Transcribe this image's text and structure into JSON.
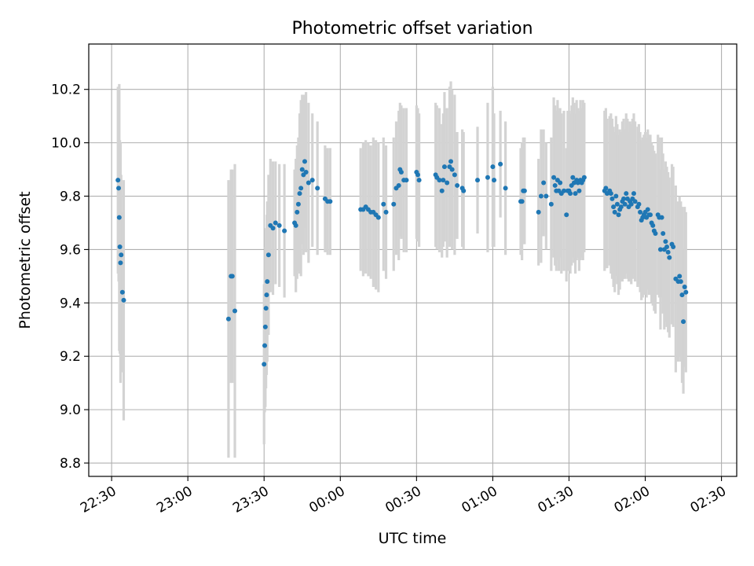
{
  "chart_data": {
    "type": "scatter",
    "title": "Photometric offset variation",
    "xlabel": "UTC time",
    "ylabel": "Photometric offset",
    "x_tick_labels": [
      "22:30",
      "23:00",
      "23:30",
      "00:00",
      "00:30",
      "01:00",
      "01:30",
      "02:00",
      "02:30"
    ],
    "y_tick_labels": [
      "8.8",
      "9.0",
      "9.2",
      "9.4",
      "9.6",
      "9.8",
      "10.0",
      "10.2"
    ],
    "xlim": [
      "22:21",
      "02:36"
    ],
    "ylim": [
      8.75,
      10.37
    ],
    "grid": true,
    "colors": {
      "points": "#1f77b4",
      "error_bars": "#d3d3d3",
      "grid": "#b0b0b0"
    },
    "points": [
      {
        "t": "22:32:30",
        "y": 9.86,
        "err": 0.35
      },
      {
        "t": "22:32:45",
        "y": 9.83,
        "err": 0.35
      },
      {
        "t": "22:33:00",
        "y": 9.72,
        "err": 0.5
      },
      {
        "t": "22:33:15",
        "y": 9.61,
        "err": 0.4
      },
      {
        "t": "22:33:30",
        "y": 9.55,
        "err": 0.45
      },
      {
        "t": "22:33:45",
        "y": 9.58,
        "err": 0.3
      },
      {
        "t": "22:34:15",
        "y": 9.44,
        "err": 0.3
      },
      {
        "t": "22:34:45",
        "y": 9.41,
        "err": 0.45
      },
      {
        "t": "23:16:00",
        "y": 9.34,
        "err": 0.52
      },
      {
        "t": "23:17:00",
        "y": 9.5,
        "err": 0.4
      },
      {
        "t": "23:17:30",
        "y": 9.5,
        "err": 0.4
      },
      {
        "t": "23:18:30",
        "y": 9.37,
        "err": 0.55
      },
      {
        "t": "23:30:00",
        "y": 9.17,
        "err": 0.3
      },
      {
        "t": "23:30:15",
        "y": 9.24,
        "err": 0.25
      },
      {
        "t": "23:30:30",
        "y": 9.31,
        "err": 0.3
      },
      {
        "t": "23:30:45",
        "y": 9.38,
        "err": 0.3
      },
      {
        "t": "23:31:00",
        "y": 9.43,
        "err": 0.3
      },
      {
        "t": "23:31:15",
        "y": 9.48,
        "err": 0.3
      },
      {
        "t": "23:31:45",
        "y": 9.58,
        "err": 0.3
      },
      {
        "t": "23:32:30",
        "y": 9.69,
        "err": 0.25
      },
      {
        "t": "23:33:30",
        "y": 9.68,
        "err": 0.25
      },
      {
        "t": "23:34:30",
        "y": 9.7,
        "err": 0.23
      },
      {
        "t": "23:36:00",
        "y": 9.69,
        "err": 0.23
      },
      {
        "t": "23:38:00",
        "y": 9.67,
        "err": 0.25
      },
      {
        "t": "23:42:00",
        "y": 9.7,
        "err": 0.2
      },
      {
        "t": "23:42:30",
        "y": 9.69,
        "err": 0.25
      },
      {
        "t": "23:43:00",
        "y": 9.74,
        "err": 0.25
      },
      {
        "t": "23:43:30",
        "y": 9.77,
        "err": 0.25
      },
      {
        "t": "23:44:00",
        "y": 9.81,
        "err": 0.3
      },
      {
        "t": "23:44:30",
        "y": 9.83,
        "err": 0.33
      },
      {
        "t": "23:45:00",
        "y": 9.9,
        "err": 0.28
      },
      {
        "t": "23:45:30",
        "y": 9.88,
        "err": 0.3
      },
      {
        "t": "23:46:00",
        "y": 9.93,
        "err": 0.25
      },
      {
        "t": "23:46:30",
        "y": 9.89,
        "err": 0.3
      },
      {
        "t": "23:47:30",
        "y": 9.85,
        "err": 0.3
      },
      {
        "t": "23:49:00",
        "y": 9.86,
        "err": 0.25
      },
      {
        "t": "23:51:00",
        "y": 9.83,
        "err": 0.25
      },
      {
        "t": "23:54:00",
        "y": 9.79,
        "err": 0.2
      },
      {
        "t": "23:55:00",
        "y": 9.78,
        "err": 0.2
      },
      {
        "t": "23:56:00",
        "y": 9.78,
        "err": 0.2
      },
      {
        "t": "00:08:00",
        "y": 9.75,
        "err": 0.23
      },
      {
        "t": "00:09:00",
        "y": 9.75,
        "err": 0.25
      },
      {
        "t": "00:10:00",
        "y": 9.76,
        "err": 0.25
      },
      {
        "t": "00:11:00",
        "y": 9.75,
        "err": 0.25
      },
      {
        "t": "00:12:00",
        "y": 9.74,
        "err": 0.25
      },
      {
        "t": "00:13:00",
        "y": 9.74,
        "err": 0.28
      },
      {
        "t": "00:14:00",
        "y": 9.73,
        "err": 0.28
      },
      {
        "t": "00:15:00",
        "y": 9.72,
        "err": 0.28
      },
      {
        "t": "00:17:00",
        "y": 9.77,
        "err": 0.25
      },
      {
        "t": "00:18:00",
        "y": 9.74,
        "err": 0.25
      },
      {
        "t": "00:21:00",
        "y": 9.77,
        "err": 0.25
      },
      {
        "t": "00:22:00",
        "y": 9.83,
        "err": 0.25
      },
      {
        "t": "00:23:00",
        "y": 9.84,
        "err": 0.28
      },
      {
        "t": "00:23:30",
        "y": 9.9,
        "err": 0.25
      },
      {
        "t": "00:24:00",
        "y": 9.89,
        "err": 0.25
      },
      {
        "t": "00:25:00",
        "y": 9.86,
        "err": 0.27
      },
      {
        "t": "00:26:00",
        "y": 9.86,
        "err": 0.27
      },
      {
        "t": "00:30:00",
        "y": 9.89,
        "err": 0.25
      },
      {
        "t": "00:30:30",
        "y": 9.88,
        "err": 0.25
      },
      {
        "t": "00:31:00",
        "y": 9.86,
        "err": 0.25
      },
      {
        "t": "00:37:30",
        "y": 9.88,
        "err": 0.27
      },
      {
        "t": "00:38:00",
        "y": 9.87,
        "err": 0.27
      },
      {
        "t": "00:39:00",
        "y": 9.86,
        "err": 0.27
      },
      {
        "t": "00:40:00",
        "y": 9.82,
        "err": 0.25
      },
      {
        "t": "00:40:30",
        "y": 9.86,
        "err": 0.25
      },
      {
        "t": "00:41:00",
        "y": 9.91,
        "err": 0.28
      },
      {
        "t": "00:42:00",
        "y": 9.85,
        "err": 0.28
      },
      {
        "t": "00:43:00",
        "y": 9.91,
        "err": 0.3
      },
      {
        "t": "00:43:30",
        "y": 9.93,
        "err": 0.3
      },
      {
        "t": "00:44:00",
        "y": 9.9,
        "err": 0.3
      },
      {
        "t": "00:45:00",
        "y": 9.88,
        "err": 0.3
      },
      {
        "t": "00:46:00",
        "y": 9.84,
        "err": 0.2
      },
      {
        "t": "00:48:00",
        "y": 9.83,
        "err": 0.22
      },
      {
        "t": "00:48:30",
        "y": 9.82,
        "err": 0.22
      },
      {
        "t": "00:54:00",
        "y": 9.86,
        "err": 0.2
      },
      {
        "t": "00:58:00",
        "y": 9.87,
        "err": 0.28
      },
      {
        "t": "01:00:00",
        "y": 9.91,
        "err": 0.3
      },
      {
        "t": "01:00:30",
        "y": 9.86,
        "err": 0.25
      },
      {
        "t": "01:03:00",
        "y": 9.92,
        "err": 0.2
      },
      {
        "t": "01:05:00",
        "y": 9.83,
        "err": 0.25
      },
      {
        "t": "01:11:00",
        "y": 9.78,
        "err": 0.2
      },
      {
        "t": "01:11:30",
        "y": 9.78,
        "err": 0.22
      },
      {
        "t": "01:12:00",
        "y": 9.82,
        "err": 0.2
      },
      {
        "t": "01:12:30",
        "y": 9.82,
        "err": 0.2
      },
      {
        "t": "01:18:00",
        "y": 9.74,
        "err": 0.2
      },
      {
        "t": "01:19:00",
        "y": 9.8,
        "err": 0.25
      },
      {
        "t": "01:20:00",
        "y": 9.85,
        "err": 0.2
      },
      {
        "t": "01:21:00",
        "y": 9.8,
        "err": 0.2
      },
      {
        "t": "01:23:00",
        "y": 9.77,
        "err": 0.25
      },
      {
        "t": "01:24:00",
        "y": 9.87,
        "err": 0.3
      },
      {
        "t": "01:24:30",
        "y": 9.84,
        "err": 0.3
      },
      {
        "t": "01:25:00",
        "y": 9.82,
        "err": 0.3
      },
      {
        "t": "01:25:30",
        "y": 9.86,
        "err": 0.3
      },
      {
        "t": "01:26:00",
        "y": 9.82,
        "err": 0.3
      },
      {
        "t": "01:26:30",
        "y": 9.85,
        "err": 0.28
      },
      {
        "t": "01:27:00",
        "y": 9.81,
        "err": 0.3
      },
      {
        "t": "01:28:00",
        "y": 9.82,
        "err": 0.3
      },
      {
        "t": "01:29:00",
        "y": 9.73,
        "err": 0.25
      },
      {
        "t": "01:29:30",
        "y": 9.82,
        "err": 0.3
      },
      {
        "t": "01:30:00",
        "y": 9.82,
        "err": 0.3
      },
      {
        "t": "01:30:30",
        "y": 9.81,
        "err": 0.3
      },
      {
        "t": "01:31:00",
        "y": 9.84,
        "err": 0.3
      },
      {
        "t": "01:31:30",
        "y": 9.87,
        "err": 0.3
      },
      {
        "t": "01:32:00",
        "y": 9.85,
        "err": 0.3
      },
      {
        "t": "01:32:30",
        "y": 9.81,
        "err": 0.3
      },
      {
        "t": "01:33:00",
        "y": 9.86,
        "err": 0.3
      },
      {
        "t": "01:33:30",
        "y": 9.85,
        "err": 0.28
      },
      {
        "t": "01:34:00",
        "y": 9.82,
        "err": 0.3
      },
      {
        "t": "01:34:30",
        "y": 9.86,
        "err": 0.3
      },
      {
        "t": "01:35:00",
        "y": 9.85,
        "err": 0.28
      },
      {
        "t": "01:35:30",
        "y": 9.86,
        "err": 0.3
      },
      {
        "t": "01:36:00",
        "y": 9.87,
        "err": 0.28
      },
      {
        "t": "01:44:00",
        "y": 9.82,
        "err": 0.3
      },
      {
        "t": "01:44:30",
        "y": 9.83,
        "err": 0.3
      },
      {
        "t": "01:45:00",
        "y": 9.81,
        "err": 0.28
      },
      {
        "t": "01:46:00",
        "y": 9.82,
        "err": 0.28
      },
      {
        "t": "01:46:30",
        "y": 9.81,
        "err": 0.3
      },
      {
        "t": "01:47:00",
        "y": 9.79,
        "err": 0.3
      },
      {
        "t": "01:47:30",
        "y": 9.76,
        "err": 0.3
      },
      {
        "t": "01:48:00",
        "y": 9.74,
        "err": 0.3
      },
      {
        "t": "01:48:30",
        "y": 9.8,
        "err": 0.3
      },
      {
        "t": "01:49:00",
        "y": 9.77,
        "err": 0.3
      },
      {
        "t": "01:49:30",
        "y": 9.73,
        "err": 0.3
      },
      {
        "t": "01:50:00",
        "y": 9.75,
        "err": 0.3
      },
      {
        "t": "01:50:30",
        "y": 9.76,
        "err": 0.28
      },
      {
        "t": "01:51:00",
        "y": 9.78,
        "err": 0.3
      },
      {
        "t": "01:51:30",
        "y": 9.79,
        "err": 0.3
      },
      {
        "t": "01:52:00",
        "y": 9.77,
        "err": 0.28
      },
      {
        "t": "01:52:30",
        "y": 9.81,
        "err": 0.3
      },
      {
        "t": "01:53:00",
        "y": 9.79,
        "err": 0.3
      },
      {
        "t": "01:53:30",
        "y": 9.76,
        "err": 0.28
      },
      {
        "t": "01:54:00",
        "y": 9.78,
        "err": 0.3
      },
      {
        "t": "01:54:30",
        "y": 9.77,
        "err": 0.3
      },
      {
        "t": "01:55:00",
        "y": 9.79,
        "err": 0.3
      },
      {
        "t": "01:55:30",
        "y": 9.81,
        "err": 0.3
      },
      {
        "t": "01:56:00",
        "y": 9.78,
        "err": 0.3
      },
      {
        "t": "01:57:00",
        "y": 9.76,
        "err": 0.3
      },
      {
        "t": "01:57:30",
        "y": 9.77,
        "err": 0.3
      },
      {
        "t": "01:58:00",
        "y": 9.74,
        "err": 0.3
      },
      {
        "t": "01:58:30",
        "y": 9.71,
        "err": 0.3
      },
      {
        "t": "01:59:00",
        "y": 9.72,
        "err": 0.3
      },
      {
        "t": "01:59:30",
        "y": 9.73,
        "err": 0.3
      },
      {
        "t": "02:00:00",
        "y": 9.74,
        "err": 0.3
      },
      {
        "t": "02:00:30",
        "y": 9.72,
        "err": 0.3
      },
      {
        "t": "02:01:00",
        "y": 9.75,
        "err": 0.3
      },
      {
        "t": "02:01:30",
        "y": 9.73,
        "err": 0.3
      },
      {
        "t": "02:02:00",
        "y": 9.73,
        "err": 0.3
      },
      {
        "t": "02:02:30",
        "y": 9.7,
        "err": 0.3
      },
      {
        "t": "02:03:00",
        "y": 9.69,
        "err": 0.3
      },
      {
        "t": "02:03:30",
        "y": 9.67,
        "err": 0.3
      },
      {
        "t": "02:04:00",
        "y": 9.66,
        "err": 0.3
      },
      {
        "t": "02:05:00",
        "y": 9.73,
        "err": 0.3
      },
      {
        "t": "02:05:30",
        "y": 9.72,
        "err": 0.3
      },
      {
        "t": "02:06:00",
        "y": 9.6,
        "err": 0.3
      },
      {
        "t": "02:06:30",
        "y": 9.72,
        "err": 0.3
      },
      {
        "t": "02:07:00",
        "y": 9.66,
        "err": 0.3
      },
      {
        "t": "02:07:30",
        "y": 9.6,
        "err": 0.3
      },
      {
        "t": "02:08:00",
        "y": 9.63,
        "err": 0.3
      },
      {
        "t": "02:08:30",
        "y": 9.61,
        "err": 0.3
      },
      {
        "t": "02:09:00",
        "y": 9.59,
        "err": 0.3
      },
      {
        "t": "02:09:30",
        "y": 9.57,
        "err": 0.3
      },
      {
        "t": "02:10:30",
        "y": 9.62,
        "err": 0.3
      },
      {
        "t": "02:11:00",
        "y": 9.61,
        "err": 0.3
      },
      {
        "t": "02:12:00",
        "y": 9.49,
        "err": 0.35
      },
      {
        "t": "02:13:00",
        "y": 9.48,
        "err": 0.3
      },
      {
        "t": "02:13:30",
        "y": 9.5,
        "err": 0.3
      },
      {
        "t": "02:14:00",
        "y": 9.48,
        "err": 0.3
      },
      {
        "t": "02:14:30",
        "y": 9.43,
        "err": 0.33
      },
      {
        "t": "02:15:00",
        "y": 9.33,
        "err": 0.27
      },
      {
        "t": "02:15:30",
        "y": 9.46,
        "err": 0.3
      },
      {
        "t": "02:16:00",
        "y": 9.44,
        "err": 0.3
      }
    ]
  }
}
